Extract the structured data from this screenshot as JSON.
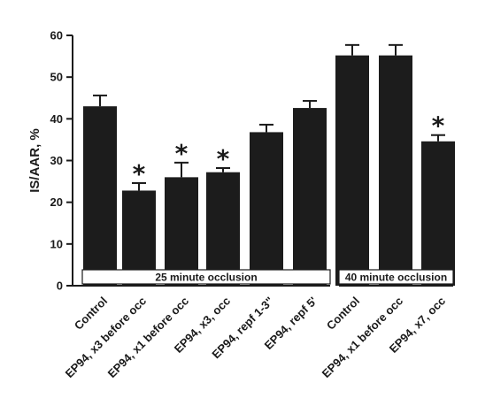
{
  "chart_data": {
    "type": "bar",
    "ylabel": "IS/AAR, %",
    "xlabel": "",
    "ylim": [
      0,
      60
    ],
    "yticks": [
      0,
      10,
      20,
      30,
      40,
      50,
      60
    ],
    "grid": false,
    "groups": [
      {
        "label": "25 minute occlusion",
        "categories": [
          "Control",
          "EP94, x3 before occ",
          "EP94, x1 before occ",
          "EP94, x3, occ",
          "EP94, repf 1-3\"",
          "EP94, repf 5'"
        ],
        "values": [
          43,
          22.8,
          26,
          27.2,
          36.8,
          42.6
        ],
        "errors": [
          2.6,
          1.8,
          3.5,
          1.0,
          1.8,
          1.7
        ],
        "significant": [
          false,
          true,
          true,
          true,
          false,
          false
        ]
      },
      {
        "label": "40 minute occlusion",
        "categories": [
          "Control",
          "EP94, x1 before occ",
          "EP94, x7, occ"
        ],
        "values": [
          55.2,
          55.2,
          34.6
        ],
        "errors": [
          2.5,
          2.5,
          1.5
        ],
        "significant": [
          false,
          false,
          true
        ]
      }
    ],
    "significance_marker": "*",
    "bar_color": "#1c1c1c"
  }
}
